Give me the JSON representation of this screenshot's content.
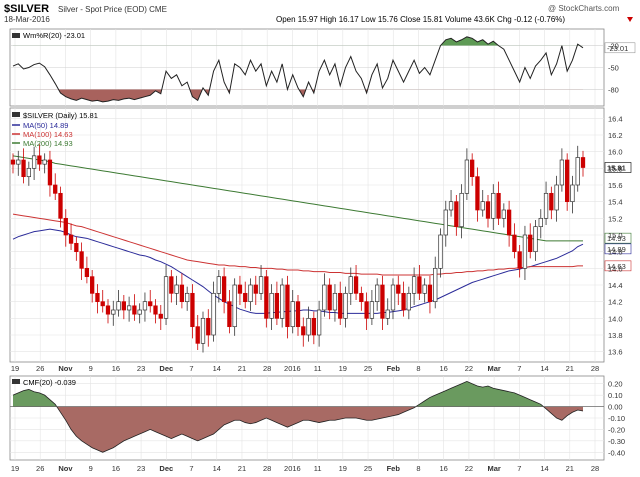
{
  "header": {
    "symbol": "$SILVER",
    "description": "Silver - Spot Price (EOD) CME",
    "date": "18-Mar-2016",
    "quote": "Open 15.97  High 16.17  Low 15.76  Close 15.81  Volume 43.6K  Chg -0.12 (-0.76%)",
    "credit": "@ StockCharts.com",
    "arrow_color": "#cc0000"
  },
  "chart_data": [
    {
      "type": "line",
      "title": "Wm%R(20) -23.01",
      "ylim": [
        -100,
        0
      ],
      "y_ticks": [
        -20,
        -50,
        -80
      ],
      "y_tick_labels": [
        "-20",
        "-50",
        "-80"
      ],
      "overbought_level": -20,
      "oversold_level": -80,
      "last_value_label": "-23.01",
      "x": [
        0,
        1,
        2,
        3,
        4,
        5,
        6,
        7,
        8,
        9,
        10,
        11,
        12,
        13,
        14,
        15,
        16,
        17,
        18,
        19,
        20,
        21,
        22,
        23,
        24,
        25,
        26,
        27,
        28,
        29,
        30,
        31,
        32,
        33,
        34,
        35,
        36,
        37,
        38,
        39,
        40,
        41,
        42,
        43,
        44,
        45,
        46,
        47,
        48,
        49,
        50,
        51,
        52,
        53,
        54,
        55,
        56,
        57,
        58,
        59,
        60,
        61,
        62,
        63,
        64,
        65,
        66,
        67,
        68,
        69,
        70,
        71,
        72,
        73,
        74,
        75,
        76,
        77,
        78,
        79,
        80,
        81,
        82,
        83,
        84,
        85,
        86,
        87,
        88,
        89,
        90,
        91,
        92,
        93,
        94,
        95,
        96,
        97,
        98,
        99,
        100,
        101,
        102,
        103,
        104,
        105,
        106,
        107,
        108
      ],
      "values": [
        -48,
        -45,
        -52,
        -50,
        -46,
        -44,
        -49,
        -60,
        -72,
        -85,
        -90,
        -93,
        -95,
        -92,
        -94,
        -96,
        -95,
        -97,
        -96,
        -94,
        -95,
        -93,
        -92,
        -94,
        -92,
        -90,
        -88,
        -82,
        -86,
        -55,
        -65,
        -60,
        -75,
        -70,
        -90,
        -95,
        -78,
        -88,
        -55,
        -40,
        -70,
        -85,
        -45,
        -50,
        -60,
        -40,
        -55,
        -45,
        -75,
        -55,
        -70,
        -45,
        -80,
        -60,
        -78,
        -90,
        -70,
        -85,
        -55,
        -40,
        -60,
        -45,
        -75,
        -50,
        -35,
        -55,
        -65,
        -85,
        -60,
        -45,
        -78,
        -65,
        -40,
        -55,
        -70,
        -55,
        -40,
        -58,
        -50,
        -60,
        -40,
        -20,
        -12,
        -10,
        -15,
        -12,
        -8,
        -10,
        -15,
        -12,
        -18,
        -14,
        -20,
        -25,
        -40,
        -55,
        -70,
        -50,
        -65,
        -48,
        -40,
        -30,
        -60,
        -45,
        -20,
        -55,
        -40,
        -18,
        -23
      ]
    },
    {
      "type": "candlestick",
      "title": "$SILVER (Daily) 15.81",
      "ylim": [
        13.5,
        16.5
      ],
      "y_ticks": [
        13.6,
        13.8,
        14.0,
        14.2,
        14.4,
        14.6,
        14.8,
        15.0,
        15.2,
        15.4,
        15.6,
        15.8,
        16.0,
        16.2,
        16.4
      ],
      "y_tick_labels": [
        "13.6",
        "13.8",
        "14.0",
        "14.2",
        "14.4",
        "14.6",
        "14.8",
        "15.0",
        "15.2",
        "15.4",
        "15.6",
        "15.8",
        "16.0",
        "16.2",
        "16.4"
      ],
      "last_close_label": "15.81",
      "close_series": [
        15.85,
        15.9,
        15.7,
        15.8,
        15.95,
        15.85,
        15.9,
        15.6,
        15.5,
        15.2,
        15.0,
        14.9,
        14.8,
        14.6,
        14.5,
        14.3,
        14.2,
        14.15,
        14.05,
        14.1,
        14.2,
        14.1,
        14.15,
        14.05,
        14.1,
        14.2,
        14.15,
        14.05,
        14.0,
        14.5,
        14.3,
        14.4,
        14.2,
        14.3,
        13.9,
        13.7,
        14.0,
        13.8,
        14.3,
        14.5,
        14.2,
        13.9,
        14.4,
        14.3,
        14.2,
        14.4,
        14.3,
        14.5,
        14.0,
        14.3,
        14.0,
        14.4,
        13.9,
        14.2,
        13.9,
        13.8,
        14.0,
        13.8,
        14.1,
        14.4,
        14.1,
        14.3,
        14.0,
        14.3,
        14.5,
        14.3,
        14.2,
        14.0,
        14.2,
        14.4,
        14.0,
        14.1,
        14.4,
        14.3,
        14.1,
        14.3,
        14.5,
        14.3,
        14.4,
        14.2,
        14.6,
        15.0,
        15.3,
        15.4,
        15.1,
        15.5,
        15.9,
        15.7,
        15.3,
        15.4,
        15.2,
        15.5,
        15.2,
        15.3,
        15.0,
        14.8,
        14.6,
        15.0,
        14.8,
        15.1,
        15.2,
        15.5,
        15.3,
        15.6,
        15.9,
        15.4,
        15.6,
        15.93,
        15.81
      ],
      "series": [
        {
          "name": "MA(50) 14.89",
          "color": "#2b2b99",
          "values": [
            14.95,
            14.98,
            15.0,
            15.02,
            15.04,
            15.05,
            15.06,
            15.07,
            15.06,
            15.05,
            15.03,
            15.0,
            14.98,
            14.97,
            14.96,
            14.94,
            14.92,
            14.9,
            14.88,
            14.86,
            14.84,
            14.82,
            14.8,
            14.78,
            14.76,
            14.75,
            14.73,
            14.7,
            14.68,
            14.65,
            14.62,
            14.58,
            14.54,
            14.5,
            14.46,
            14.42,
            14.38,
            14.33,
            14.28,
            14.24,
            14.2,
            14.17,
            14.14,
            14.11,
            14.09,
            14.07,
            14.06,
            14.06,
            14.06,
            14.07,
            14.07,
            14.08,
            14.08,
            14.09,
            14.09,
            14.1,
            14.1,
            14.09,
            14.09,
            14.08,
            14.07,
            14.07,
            14.06,
            14.06,
            14.06,
            14.06,
            14.06,
            14.06,
            14.06,
            14.06,
            14.07,
            14.07,
            14.08,
            14.09,
            14.1,
            14.12,
            14.14,
            14.16,
            14.18,
            14.2,
            14.22,
            14.25,
            14.28,
            14.31,
            14.34,
            14.37,
            14.4,
            14.43,
            14.45,
            14.47,
            14.49,
            14.51,
            14.53,
            14.55,
            14.57,
            14.58,
            14.59,
            14.61,
            14.62,
            14.64,
            14.66,
            14.68,
            14.7,
            14.72,
            14.75,
            14.78,
            14.81,
            14.86,
            14.89
          ]
        },
        {
          "name": "MA(100) 14.63",
          "color": "#cc3333",
          "values": [
            15.25,
            15.24,
            15.23,
            15.22,
            15.21,
            15.2,
            15.19,
            15.18,
            15.17,
            15.16,
            15.15,
            15.13,
            15.11,
            15.1,
            15.08,
            15.06,
            15.04,
            15.02,
            15.0,
            14.98,
            14.96,
            14.94,
            14.92,
            14.9,
            14.88,
            14.86,
            14.84,
            14.82,
            14.8,
            14.78,
            14.76,
            14.74,
            14.72,
            14.7,
            14.69,
            14.68,
            14.67,
            14.66,
            14.65,
            14.64,
            14.64,
            14.63,
            14.63,
            14.62,
            14.62,
            14.61,
            14.61,
            14.6,
            14.6,
            14.6,
            14.59,
            14.59,
            14.58,
            14.58,
            14.58,
            14.57,
            14.57,
            14.56,
            14.56,
            14.56,
            14.55,
            14.55,
            14.55,
            14.54,
            14.54,
            14.54,
            14.53,
            14.53,
            14.53,
            14.53,
            14.52,
            14.52,
            14.52,
            14.52,
            14.52,
            14.52,
            14.52,
            14.52,
            14.52,
            14.52,
            14.53,
            14.53,
            14.54,
            14.54,
            14.55,
            14.55,
            14.56,
            14.56,
            14.57,
            14.57,
            14.58,
            14.58,
            14.59,
            14.59,
            14.6,
            14.6,
            14.61,
            14.61,
            14.62,
            14.62,
            14.62,
            14.62,
            14.62,
            14.62,
            14.62,
            14.62,
            14.62,
            14.63,
            14.63
          ]
        },
        {
          "name": "MA(200) 14.93",
          "color": "#3d7a33",
          "values": [
            15.95,
            15.94,
            15.93,
            15.92,
            15.91,
            15.9,
            15.89,
            15.88,
            15.86,
            15.85,
            15.84,
            15.83,
            15.82,
            15.81,
            15.8,
            15.79,
            15.78,
            15.77,
            15.76,
            15.75,
            15.74,
            15.73,
            15.72,
            15.71,
            15.7,
            15.69,
            15.68,
            15.67,
            15.66,
            15.65,
            15.64,
            15.63,
            15.62,
            15.61,
            15.6,
            15.59,
            15.58,
            15.57,
            15.56,
            15.55,
            15.54,
            15.53,
            15.52,
            15.51,
            15.5,
            15.49,
            15.48,
            15.47,
            15.46,
            15.45,
            15.44,
            15.43,
            15.42,
            15.41,
            15.4,
            15.39,
            15.38,
            15.37,
            15.36,
            15.35,
            15.34,
            15.33,
            15.32,
            15.31,
            15.3,
            15.29,
            15.28,
            15.27,
            15.26,
            15.25,
            15.24,
            15.23,
            15.22,
            15.21,
            15.2,
            15.19,
            15.18,
            15.17,
            15.16,
            15.15,
            15.14,
            15.13,
            15.12,
            15.11,
            15.1,
            15.09,
            15.08,
            15.07,
            15.06,
            15.05,
            15.04,
            15.03,
            15.02,
            15.01,
            15.0,
            14.99,
            14.98,
            14.97,
            14.96,
            14.95,
            14.94,
            14.93,
            14.93,
            14.93,
            14.93,
            14.93,
            14.93,
            14.93,
            14.93
          ]
        }
      ],
      "price_labels": [
        "15.81",
        "14.93",
        "14.89",
        "14.63"
      ]
    },
    {
      "type": "area",
      "title": "CMF(20) -0.039",
      "ylim": [
        -0.45,
        0.25
      ],
      "y_ticks": [
        0.2,
        0.1,
        0.0,
        -0.1,
        -0.2,
        -0.3,
        -0.4
      ],
      "y_tick_labels": [
        "0.20",
        "0.10",
        "0.00",
        "-0.10",
        "-0.20",
        "-0.30",
        "-0.40"
      ],
      "values": [
        0.1,
        0.12,
        0.14,
        0.15,
        0.13,
        0.12,
        0.1,
        0.06,
        0.02,
        -0.05,
        -0.12,
        -0.2,
        -0.26,
        -0.3,
        -0.33,
        -0.36,
        -0.38,
        -0.4,
        -0.38,
        -0.36,
        -0.33,
        -0.3,
        -0.28,
        -0.26,
        -0.24,
        -0.22,
        -0.2,
        -0.22,
        -0.24,
        -0.26,
        -0.28,
        -0.26,
        -0.24,
        -0.26,
        -0.28,
        -0.3,
        -0.28,
        -0.26,
        -0.24,
        -0.2,
        -0.16,
        -0.14,
        -0.12,
        -0.12,
        -0.14,
        -0.15,
        -0.14,
        -0.12,
        -0.1,
        -0.12,
        -0.14,
        -0.16,
        -0.18,
        -0.16,
        -0.14,
        -0.12,
        -0.12,
        -0.13,
        -0.14,
        -0.13,
        -0.12,
        -0.12,
        -0.11,
        -0.1,
        -0.1,
        -0.1,
        -0.11,
        -0.12,
        -0.12,
        -0.11,
        -0.1,
        -0.09,
        -0.08,
        -0.07,
        -0.05,
        -0.03,
        -0.01,
        0.02,
        0.05,
        0.08,
        0.1,
        0.12,
        0.14,
        0.16,
        0.18,
        0.2,
        0.22,
        0.2,
        0.18,
        0.17,
        0.18,
        0.16,
        0.15,
        0.14,
        0.13,
        0.12,
        0.1,
        0.08,
        0.06,
        0.04,
        0.02,
        -0.02,
        -0.06,
        -0.1,
        -0.12,
        -0.08,
        -0.05,
        -0.03,
        -0.039
      ]
    }
  ],
  "x_axis": {
    "labels": [
      "19",
      "26",
      "Nov",
      "9",
      "16",
      "23",
      "Dec",
      "7",
      "14",
      "21",
      "28",
      "2016",
      "11",
      "19",
      "25",
      "Feb",
      "8",
      "16",
      "22",
      "Mar",
      "7",
      "14",
      "21",
      "28"
    ]
  }
}
